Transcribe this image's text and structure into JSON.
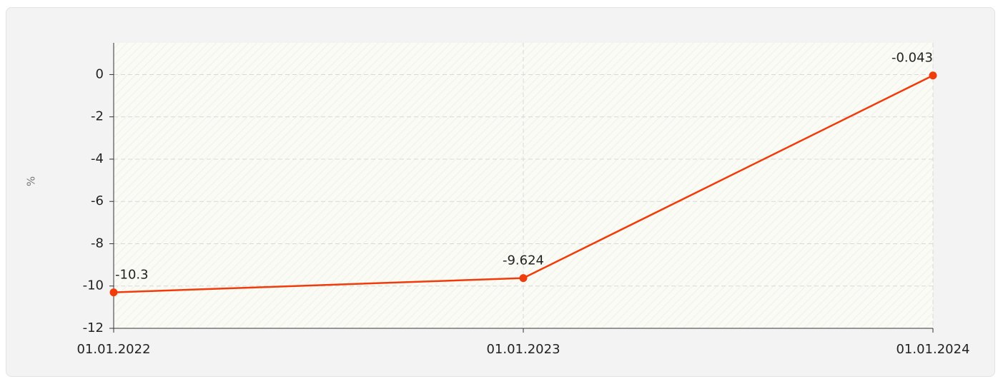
{
  "chart_data": {
    "type": "line",
    "ylabel": "%",
    "categories": [
      "01.01.2022",
      "01.01.2023",
      "01.01.2024"
    ],
    "series": [
      {
        "name": "%",
        "color": "#f03c0a",
        "values": [
          -10.3,
          -9.624,
          -0.043
        ]
      }
    ],
    "ylim": [
      -12,
      1.5
    ],
    "yticks": [
      0,
      -2,
      -4,
      -6,
      -8,
      -10,
      -12
    ],
    "grid": true
  }
}
